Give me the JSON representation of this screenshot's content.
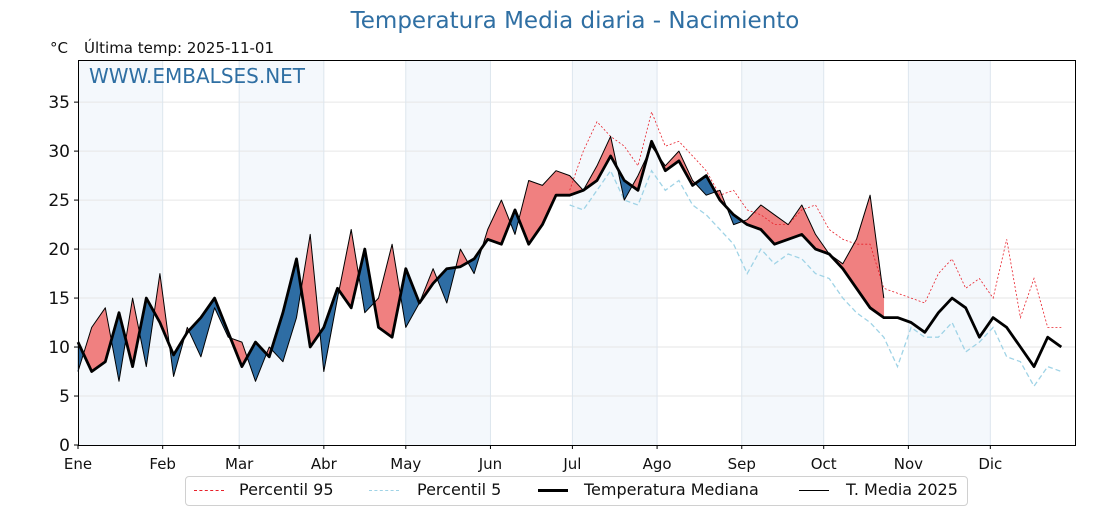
{
  "header": {
    "title": "Temperatura Media diaria - Nacimiento",
    "unit": "°C",
    "last_temp": "Última temp: 2025-11-01",
    "watermark": "WWW.EMBALSES.NET"
  },
  "legend": {
    "p95": "Percentil 95",
    "p5": "Percentil 5",
    "median": "Temperatura Mediana",
    "current": "T. Media 2025"
  },
  "colors": {
    "title": "#2f6fa3",
    "above": "#f08080",
    "below": "#2e6da4",
    "p95": "#e8202a",
    "p5": "#9fd3e6",
    "band": "#f4f8fc",
    "grid": "#e6e6e6"
  },
  "chart_data": {
    "type": "line",
    "title": "Temperatura Media diaria - Nacimiento",
    "xlabel": "",
    "ylabel": "°C",
    "ylim": [
      0,
      39.3
    ],
    "xlim_days": [
      1,
      366
    ],
    "yticks": [
      0,
      5,
      10,
      15,
      20,
      25,
      30,
      35
    ],
    "month_ticks": [
      {
        "label": "Ene",
        "day": 1
      },
      {
        "label": "Feb",
        "day": 32
      },
      {
        "label": "Mar",
        "day": 60
      },
      {
        "label": "Abr",
        "day": 91
      },
      {
        "label": "May",
        "day": 121
      },
      {
        "label": "Jun",
        "day": 152
      },
      {
        "label": "Jul",
        "day": 182
      },
      {
        "label": "Ago",
        "day": 213
      },
      {
        "label": "Sep",
        "day": 244
      },
      {
        "label": "Oct",
        "day": 274
      },
      {
        "label": "Nov",
        "day": 305
      },
      {
        "label": "Dic",
        "day": 335
      }
    ],
    "grid": true,
    "legend_position": "bottom-center",
    "x_days": [
      1,
      6,
      11,
      16,
      21,
      26,
      31,
      36,
      41,
      46,
      51,
      56,
      61,
      66,
      71,
      76,
      81,
      86,
      91,
      96,
      101,
      106,
      111,
      116,
      121,
      126,
      131,
      136,
      141,
      146,
      151,
      156,
      161,
      166,
      171,
      176,
      181,
      186,
      191,
      196,
      201,
      206,
      211,
      216,
      221,
      226,
      231,
      236,
      241,
      246,
      251,
      256,
      261,
      266,
      271,
      276,
      281,
      286,
      291,
      296,
      301,
      306,
      311,
      316,
      321,
      326,
      331,
      336,
      341,
      346,
      351,
      356,
      361
    ],
    "series": [
      {
        "name": "Temperatura Mediana",
        "values": [
          10.5,
          7.5,
          8.5,
          13.5,
          8.0,
          15.0,
          12.5,
          9.2,
          11.5,
          13.0,
          15.0,
          11.5,
          8.0,
          10.5,
          9.0,
          13.5,
          19.0,
          10.0,
          12.0,
          16.0,
          14.0,
          20.0,
          12.0,
          11.0,
          18.0,
          14.5,
          16.5,
          18.0,
          18.2,
          19.0,
          21.0,
          20.5,
          24.0,
          20.5,
          22.5,
          25.5,
          25.5,
          26.0,
          27.0,
          29.5,
          27.0,
          26.0,
          31.0,
          28.0,
          29.0,
          26.5,
          27.5,
          25.0,
          23.5,
          22.5,
          22.0,
          20.5,
          21.0,
          21.5,
          20.0,
          19.5,
          18.0,
          16.0,
          14.0,
          13.0,
          13.0,
          12.5,
          11.5,
          13.5,
          15.0,
          14.0,
          11.0,
          13.0,
          12.0,
          10.0,
          8.0,
          11.0,
          10.0
        ]
      },
      {
        "name": "T. Media 2025",
        "values": [
          7.5,
          12.0,
          14.0,
          6.5,
          15.0,
          8.0,
          17.5,
          7.0,
          12.0,
          9.0,
          14.0,
          11.0,
          10.5,
          6.5,
          10.0,
          8.5,
          13.0,
          21.5,
          7.5,
          15.0,
          22.0,
          13.5,
          15.0,
          20.5,
          12.0,
          14.5,
          18.0,
          14.5,
          20.0,
          17.5,
          22.0,
          25.0,
          21.5,
          27.0,
          26.5,
          28.0,
          27.5,
          26.0,
          28.5,
          31.5,
          25.0,
          27.5,
          30.5,
          28.5,
          30.0,
          27.0,
          25.5,
          26.0,
          22.5,
          23.0,
          24.5,
          23.5,
          22.5,
          24.5,
          21.5,
          19.5,
          18.5,
          21.0,
          25.5,
          15.0,
          null,
          null,
          null,
          null,
          null,
          null,
          null,
          null,
          null,
          null,
          null,
          null,
          null
        ]
      },
      {
        "name": "Percentil 95",
        "values": [
          null,
          null,
          null,
          null,
          null,
          null,
          null,
          null,
          null,
          null,
          null,
          null,
          null,
          null,
          null,
          null,
          null,
          null,
          null,
          null,
          null,
          null,
          null,
          null,
          null,
          null,
          null,
          null,
          null,
          null,
          null,
          null,
          null,
          null,
          null,
          null,
          26.0,
          30.0,
          33.0,
          31.5,
          30.5,
          28.5,
          34.0,
          30.5,
          31.0,
          29.5,
          28.0,
          25.5,
          26.0,
          24.0,
          23.5,
          22.5,
          22.5,
          24.0,
          24.5,
          22.0,
          21.0,
          20.5,
          20.5,
          16.0,
          15.5,
          15.0,
          14.5,
          17.5,
          19.0,
          16.0,
          17.0,
          15.0,
          21.0,
          13.0,
          17.0,
          12.0,
          12.0
        ]
      },
      {
        "name": "Percentil 5",
        "values": [
          null,
          null,
          null,
          null,
          null,
          null,
          null,
          null,
          null,
          null,
          null,
          null,
          null,
          null,
          null,
          null,
          null,
          null,
          null,
          null,
          null,
          null,
          null,
          null,
          null,
          null,
          null,
          null,
          null,
          null,
          null,
          null,
          null,
          null,
          null,
          null,
          24.5,
          24.0,
          26.0,
          28.0,
          25.0,
          24.5,
          28.0,
          26.0,
          27.0,
          24.5,
          23.5,
          22.0,
          20.5,
          17.5,
          20.0,
          18.5,
          19.5,
          19.0,
          17.5,
          17.0,
          15.0,
          13.5,
          12.5,
          11.0,
          8.0,
          12.0,
          11.0,
          11.0,
          12.5,
          9.5,
          10.5,
          12.0,
          9.0,
          8.5,
          6.0,
          8.0,
          7.5
        ]
      }
    ]
  }
}
